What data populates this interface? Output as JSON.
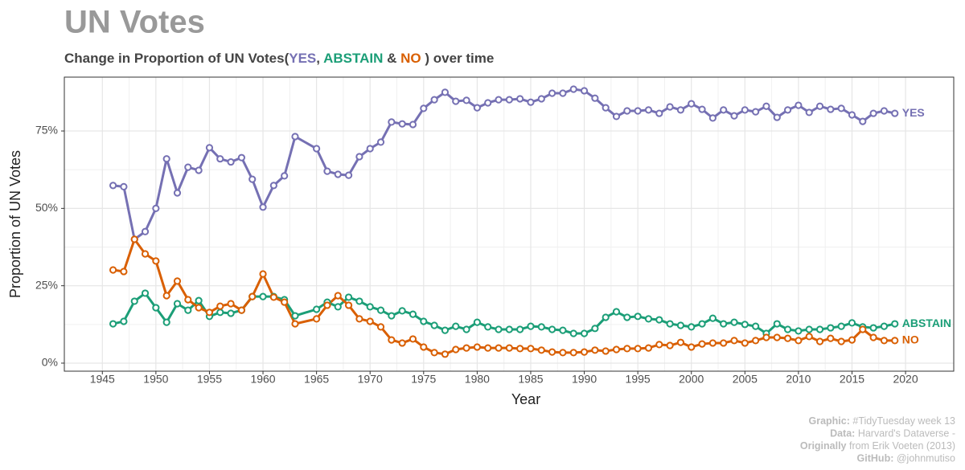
{
  "chart_data": {
    "type": "line",
    "title": "UN Votes",
    "subtitle": [
      "Change in Proportion of UN Votes(",
      ", ",
      " & ",
      " ) over time"
    ],
    "x_label": "Year",
    "y_label": "Proportion of UN Votes",
    "x": [
      1946,
      1947,
      1948,
      1949,
      1950,
      1951,
      1952,
      1953,
      1954,
      1955,
      1956,
      1957,
      1958,
      1959,
      1960,
      1961,
      1962,
      1963,
      1965,
      1966,
      1967,
      1968,
      1969,
      1970,
      1971,
      1972,
      1973,
      1974,
      1975,
      1976,
      1977,
      1978,
      1979,
      1980,
      1981,
      1982,
      1983,
      1984,
      1985,
      1986,
      1987,
      1988,
      1989,
      1990,
      1991,
      1992,
      1993,
      1994,
      1995,
      1996,
      1997,
      1998,
      1999,
      2000,
      2001,
      2002,
      2003,
      2004,
      2005,
      2006,
      2007,
      2008,
      2009,
      2010,
      2011,
      2012,
      2013,
      2014,
      2015,
      2016,
      2017,
      2018,
      2019
    ],
    "series": [
      {
        "name": "YES",
        "color": "#7570b3",
        "values": [
          57.4,
          57,
          40,
          42.5,
          50,
          66,
          55,
          63.3,
          62.3,
          69.6,
          66,
          65,
          66.4,
          59.4,
          50.4,
          57.4,
          60.5,
          73.2,
          69.3,
          62,
          61,
          60.7,
          66.7,
          69.3,
          71.4,
          77.9,
          77.3,
          77.1,
          82.3,
          85.1,
          87.5,
          84.6,
          84.9,
          82.5,
          84.1,
          85.1,
          85.1,
          85.4,
          84.3,
          85.4,
          87.2,
          87.2,
          88.5,
          88,
          85.6,
          82.5,
          79.7,
          81.5,
          81.5,
          81.8,
          80.7,
          82.8,
          81.8,
          83.8,
          82,
          79.2,
          81.8,
          79.9,
          81.8,
          81.2,
          83,
          79.4,
          81.8,
          83.3,
          81,
          83,
          82,
          82.3,
          80.2,
          78.1,
          80.7,
          81.5,
          80.7
        ]
      },
      {
        "name": "ABSTAIN",
        "color": "#1b9e77",
        "values": [
          12.7,
          13.5,
          20,
          22.6,
          17.9,
          13.2,
          19.2,
          17.1,
          20.2,
          15.1,
          16.4,
          16.1,
          17.1,
          21.5,
          21.5,
          21.5,
          20.5,
          15.3,
          17.4,
          19.7,
          18.2,
          21.3,
          20,
          18.2,
          17.1,
          15.3,
          16.9,
          15.8,
          13.5,
          12.2,
          10.6,
          11.9,
          10.9,
          13.2,
          11.7,
          10.9,
          10.9,
          10.9,
          11.9,
          11.7,
          10.9,
          10.6,
          9.6,
          9.6,
          11.2,
          14.8,
          16.6,
          14.8,
          15.1,
          14.3,
          14,
          12.7,
          12.2,
          11.7,
          12.7,
          14.5,
          12.7,
          13.2,
          12.5,
          11.9,
          9.6,
          12.7,
          10.9,
          10.4,
          10.9,
          10.9,
          11.4,
          11.9,
          13,
          11.7,
          11.4,
          11.9,
          12.7
        ]
      },
      {
        "name": "NO",
        "color": "#d95f02",
        "values": [
          30.1,
          29.6,
          40,
          35.3,
          33,
          21.8,
          26.5,
          20.5,
          17.9,
          16.4,
          18.4,
          19.2,
          17.1,
          21.5,
          28.8,
          21.3,
          19.7,
          12.7,
          14.3,
          18.7,
          21.8,
          18.7,
          14.3,
          13.5,
          11.7,
          7.5,
          6.5,
          7.8,
          5.2,
          3.4,
          2.9,
          4.4,
          4.9,
          5.2,
          4.9,
          4.9,
          4.9,
          4.7,
          4.7,
          4.2,
          3.6,
          3.4,
          3.4,
          3.6,
          4.2,
          3.9,
          4.4,
          4.7,
          4.7,
          4.9,
          6,
          5.7,
          6.7,
          5.2,
          6.2,
          6.5,
          6.5,
          7.3,
          6.5,
          7.3,
          8.3,
          8.3,
          8,
          7.3,
          8.6,
          7,
          8,
          7,
          7.5,
          10.9,
          8.3,
          7.3,
          7.3
        ]
      }
    ],
    "xlim": [
      1941.45,
      2024.5
    ],
    "xticks": [
      1945,
      1950,
      1955,
      1960,
      1965,
      1970,
      1975,
      1980,
      1985,
      1990,
      1995,
      2000,
      2005,
      2010,
      2015,
      2020
    ],
    "ylim": [
      -2.6,
      92.4
    ],
    "yticks": [
      {
        "value": 0,
        "label": "0%"
      },
      {
        "value": 25,
        "label": "25%"
      },
      {
        "value": 50,
        "label": "50%"
      },
      {
        "value": 75,
        "label": "75%"
      }
    ],
    "grid": true,
    "caption": [
      [
        "Graphic:",
        " #TidyTuesday week 13"
      ],
      [
        "Data:",
        " Harvard's Dataverse -"
      ],
      [
        "Originally",
        " from Erik Voeten (2013)"
      ],
      [
        "GitHub:",
        " @johnmutiso"
      ]
    ]
  }
}
